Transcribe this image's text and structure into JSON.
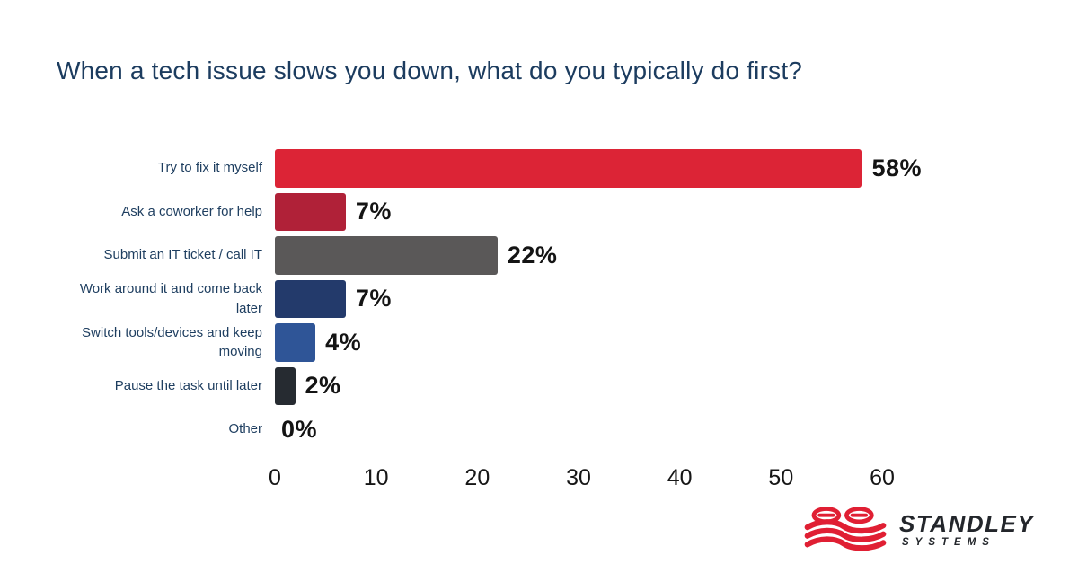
{
  "chart": {
    "title": "When a tech issue slows you down, what do you typically do first?"
  },
  "chart_data": {
    "type": "bar",
    "orientation": "horizontal",
    "title": "When a tech issue slows you down, what do you typically do first?",
    "categories": [
      "Try to fix it myself",
      "Ask a coworker for help",
      "Submit an IT ticket / call IT",
      "Work around it and come back later",
      "Switch tools/devices and keep moving",
      "Pause the task until later",
      "Other"
    ],
    "values": [
      58,
      7,
      22,
      7,
      4,
      2,
      0
    ],
    "value_labels": [
      "58%",
      "7%",
      "22%",
      "7%",
      "4%",
      "2%",
      "0%"
    ],
    "bar_colors": [
      "#DC2436",
      "#B02138",
      "#5A5858",
      "#233A6B",
      "#2F5597",
      "#262B31",
      null
    ],
    "xlabel": "",
    "ylabel": "",
    "xlim": [
      0,
      60
    ],
    "xticks": [
      0,
      10,
      20,
      30,
      40,
      50,
      60
    ],
    "grid": false,
    "legend": false,
    "category_label_color": "#1D3D5F",
    "value_label_color": "#141414",
    "tick_label_color": "#161616"
  },
  "logo": {
    "name": "STANDLEY",
    "sub": "SYSTEMS",
    "brand_red": "#E01F33",
    "text_color": "#23262B"
  }
}
